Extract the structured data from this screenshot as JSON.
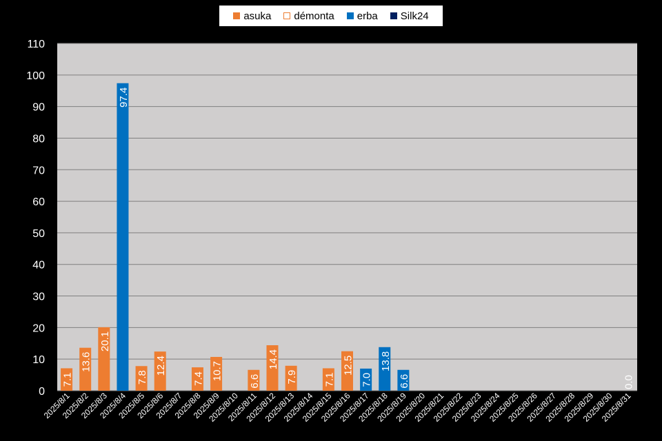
{
  "chart_data": {
    "type": "bar",
    "categories": [
      "2025/8/1",
      "2025/8/2",
      "2025/8/3",
      "2025/8/4",
      "2025/8/5",
      "2025/8/6",
      "2025/8/7",
      "2025/8/8",
      "2025/8/9",
      "2025/8/10",
      "2025/8/11",
      "2025/8/12",
      "2025/8/13",
      "2025/8/14",
      "2025/8/15",
      "2025/8/16",
      "2025/8/17",
      "2025/8/18",
      "2025/8/19",
      "2025/8/20",
      "2025/8/21",
      "2025/8/22",
      "2025/8/23",
      "2025/8/24",
      "2025/8/25",
      "2025/8/26",
      "2025/8/27",
      "2025/8/28",
      "2025/8/29",
      "2025/8/30",
      "2025/8/31"
    ],
    "series": [
      {
        "name": "asuka",
        "color": "#ED7D31",
        "legend_style": "filled",
        "values": [
          7.1,
          13.6,
          20.1,
          null,
          7.8,
          12.4,
          null,
          7.4,
          10.7,
          null,
          6.6,
          14.4,
          7.9,
          null,
          7.1,
          12.5,
          null,
          null,
          null,
          null,
          null,
          null,
          null,
          null,
          null,
          null,
          null,
          null,
          null,
          null,
          null
        ]
      },
      {
        "name": "démonta",
        "color": "#ED7D31",
        "legend_style": "outline",
        "values": [
          null,
          null,
          null,
          null,
          null,
          null,
          null,
          null,
          null,
          null,
          null,
          null,
          null,
          null,
          null,
          null,
          null,
          null,
          null,
          null,
          null,
          null,
          null,
          null,
          null,
          null,
          null,
          null,
          null,
          null,
          0.0
        ]
      },
      {
        "name": "erba",
        "color": "#0070C0",
        "legend_style": "filled",
        "values": [
          null,
          null,
          null,
          97.4,
          null,
          null,
          null,
          null,
          null,
          null,
          null,
          null,
          null,
          null,
          null,
          null,
          7.0,
          13.8,
          6.6,
          null,
          null,
          null,
          null,
          null,
          null,
          null,
          null,
          null,
          null,
          null,
          null
        ]
      },
      {
        "name": "Silk24",
        "color": "#002060",
        "legend_style": "filled",
        "values": [
          null,
          null,
          null,
          null,
          null,
          null,
          null,
          null,
          null,
          null,
          null,
          null,
          null,
          null,
          null,
          null,
          null,
          null,
          null,
          null,
          null,
          null,
          null,
          null,
          null,
          null,
          null,
          null,
          null,
          null,
          null
        ]
      }
    ],
    "y_ticks": [
      0,
      10,
      20,
      30,
      40,
      50,
      60,
      70,
      80,
      90,
      100,
      110
    ],
    "ylim": [
      0,
      110
    ],
    "grid": true,
    "legend_position": "top-center",
    "data_labels": true,
    "plot_background": "#D0CECE"
  }
}
